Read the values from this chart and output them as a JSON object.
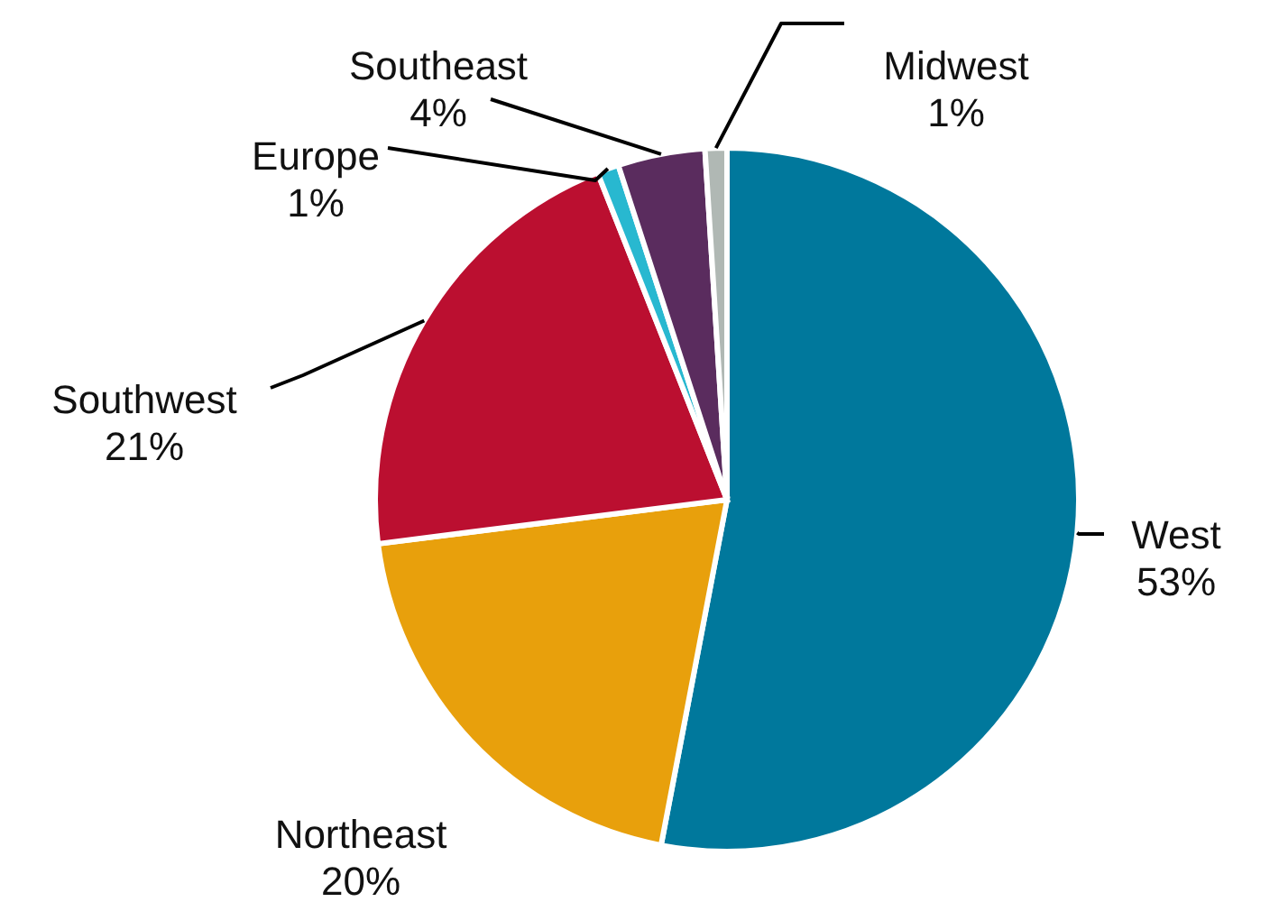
{
  "chart_data": {
    "type": "pie",
    "categories": [
      "West",
      "Northeast",
      "Southwest",
      "Europe",
      "Southeast",
      "Midwest"
    ],
    "values": [
      53,
      20,
      21,
      1,
      4,
      1
    ],
    "value_labels": [
      "53%",
      "20%",
      "21%",
      "1%",
      "4%",
      "1%"
    ],
    "colors": [
      "#00789c",
      "#e8a00c",
      "#bb0f30",
      "#28b8d0",
      "#5a2c5e",
      "#b0b8b4"
    ]
  }
}
